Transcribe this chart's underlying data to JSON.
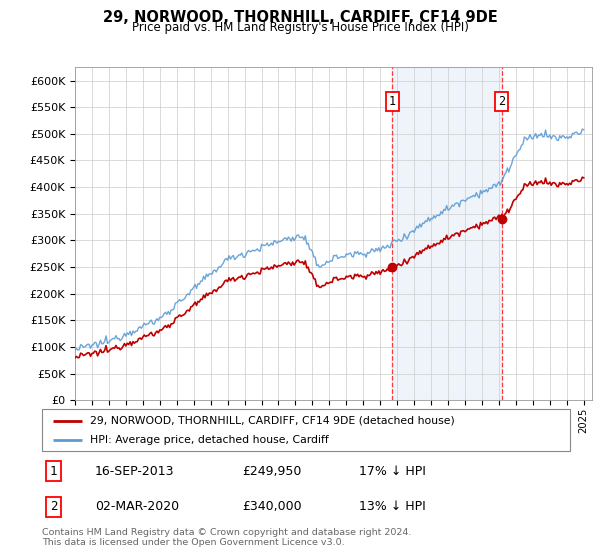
{
  "title": "29, NORWOOD, THORNHILL, CARDIFF, CF14 9DE",
  "subtitle": "Price paid vs. HM Land Registry's House Price Index (HPI)",
  "legend_line1": "29, NORWOOD, THORNHILL, CARDIFF, CF14 9DE (detached house)",
  "legend_line2": "HPI: Average price, detached house, Cardiff",
  "sale1_date": "16-SEP-2013",
  "sale1_price": 249950,
  "sale1_year": 2013.72,
  "sale1_label": "17% ↓ HPI",
  "sale2_date": "02-MAR-2020",
  "sale2_price": 340000,
  "sale2_year": 2020.17,
  "sale2_label": "13% ↓ HPI",
  "footnote1": "Contains HM Land Registry data © Crown copyright and database right 2024.",
  "footnote2": "This data is licensed under the Open Government Licence v3.0.",
  "hpi_color": "#5B9BD5",
  "sale_color": "#C00000",
  "ylim_max": 600000,
  "ytick_max": 600000,
  "year_start": 1995,
  "year_end": 2025
}
